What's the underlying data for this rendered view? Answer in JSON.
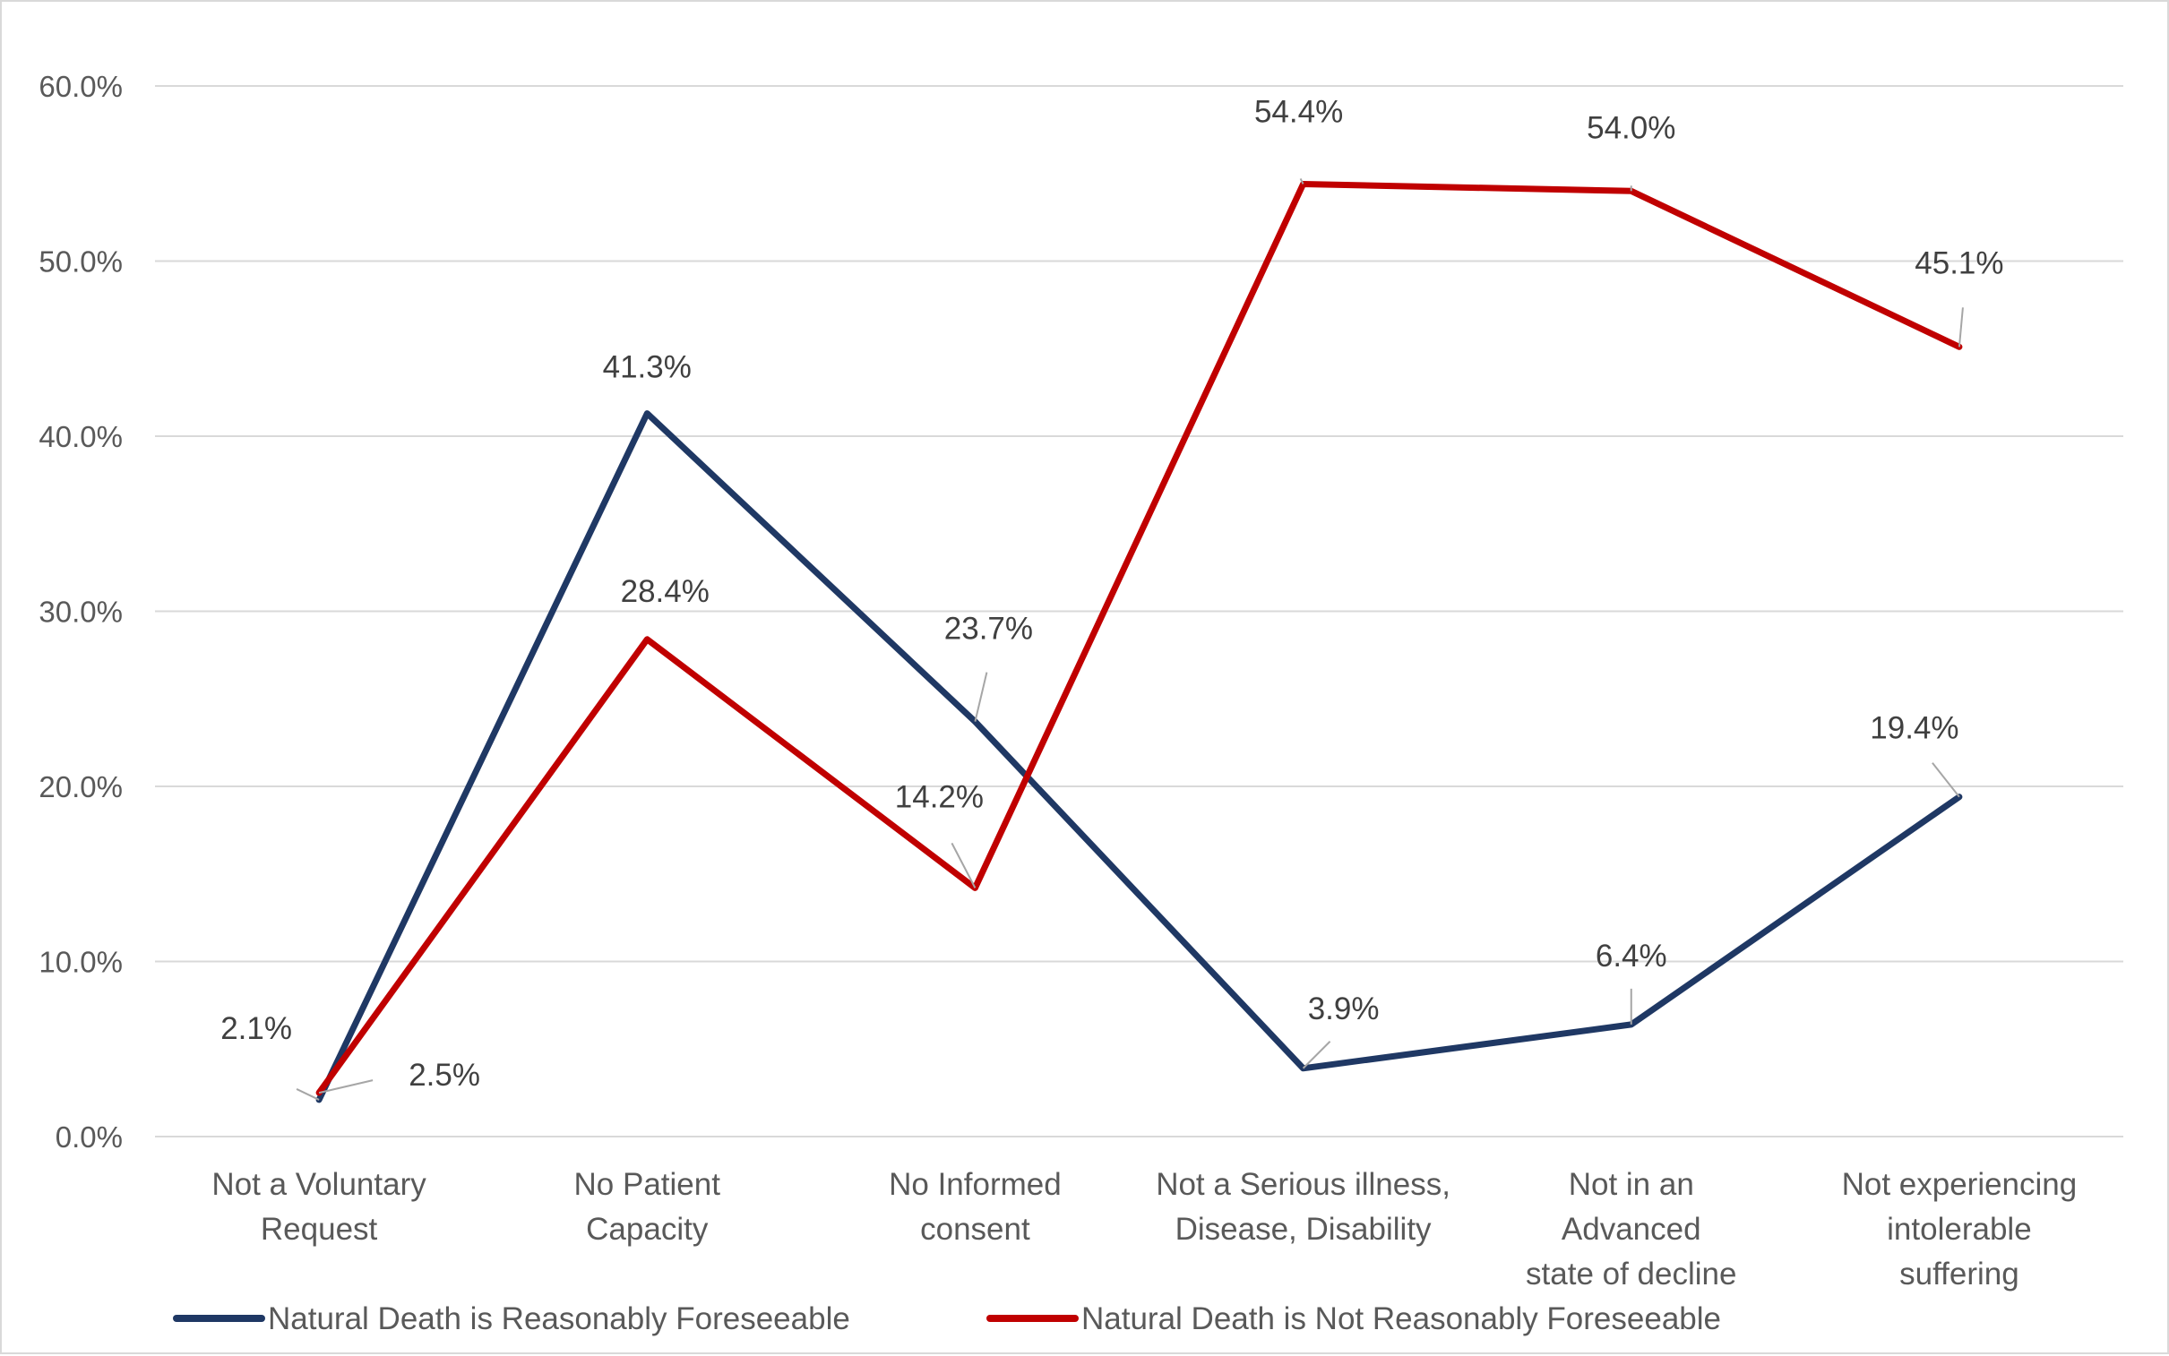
{
  "chart_data": {
    "type": "line",
    "title": "",
    "xlabel": "",
    "ylabel": "",
    "ylim": [
      0,
      60
    ],
    "y_ticks": [
      "0.0%",
      "10.0%",
      "20.0%",
      "30.0%",
      "40.0%",
      "50.0%",
      "60.0%"
    ],
    "grid": true,
    "legend_position": "bottom",
    "categories": [
      [
        "Not a Voluntary",
        "Request"
      ],
      [
        "No Patient",
        "Capacity"
      ],
      [
        "No Informed",
        "consent"
      ],
      [
        "Not a Serious illness,",
        "Disease, Disability"
      ],
      [
        "Not in an",
        "Advanced",
        "state of decline"
      ],
      [
        "Not experiencing",
        "intolerable",
        "suffering"
      ]
    ],
    "series": [
      {
        "name": "Natural Death is Reasonably Foreseeable",
        "color": "#1f3864",
        "values": [
          2.1,
          41.3,
          23.7,
          3.9,
          6.4,
          19.4
        ],
        "labels": [
          "2.1%",
          "41.3%",
          "23.7%",
          "3.9%",
          "6.4%",
          "19.4%"
        ]
      },
      {
        "name": "Natural Death is Not Reasonably Foreseeable",
        "color": "#c00000",
        "values": [
          2.5,
          28.4,
          14.2,
          54.4,
          54.0,
          45.1
        ],
        "labels": [
          "2.5%",
          "28.4%",
          "14.2%",
          "54.4%",
          "54.0%",
          "45.1%"
        ]
      }
    ],
    "gridline_color": "#d9d9d9",
    "leader_line_color": "#a6a6a6"
  }
}
